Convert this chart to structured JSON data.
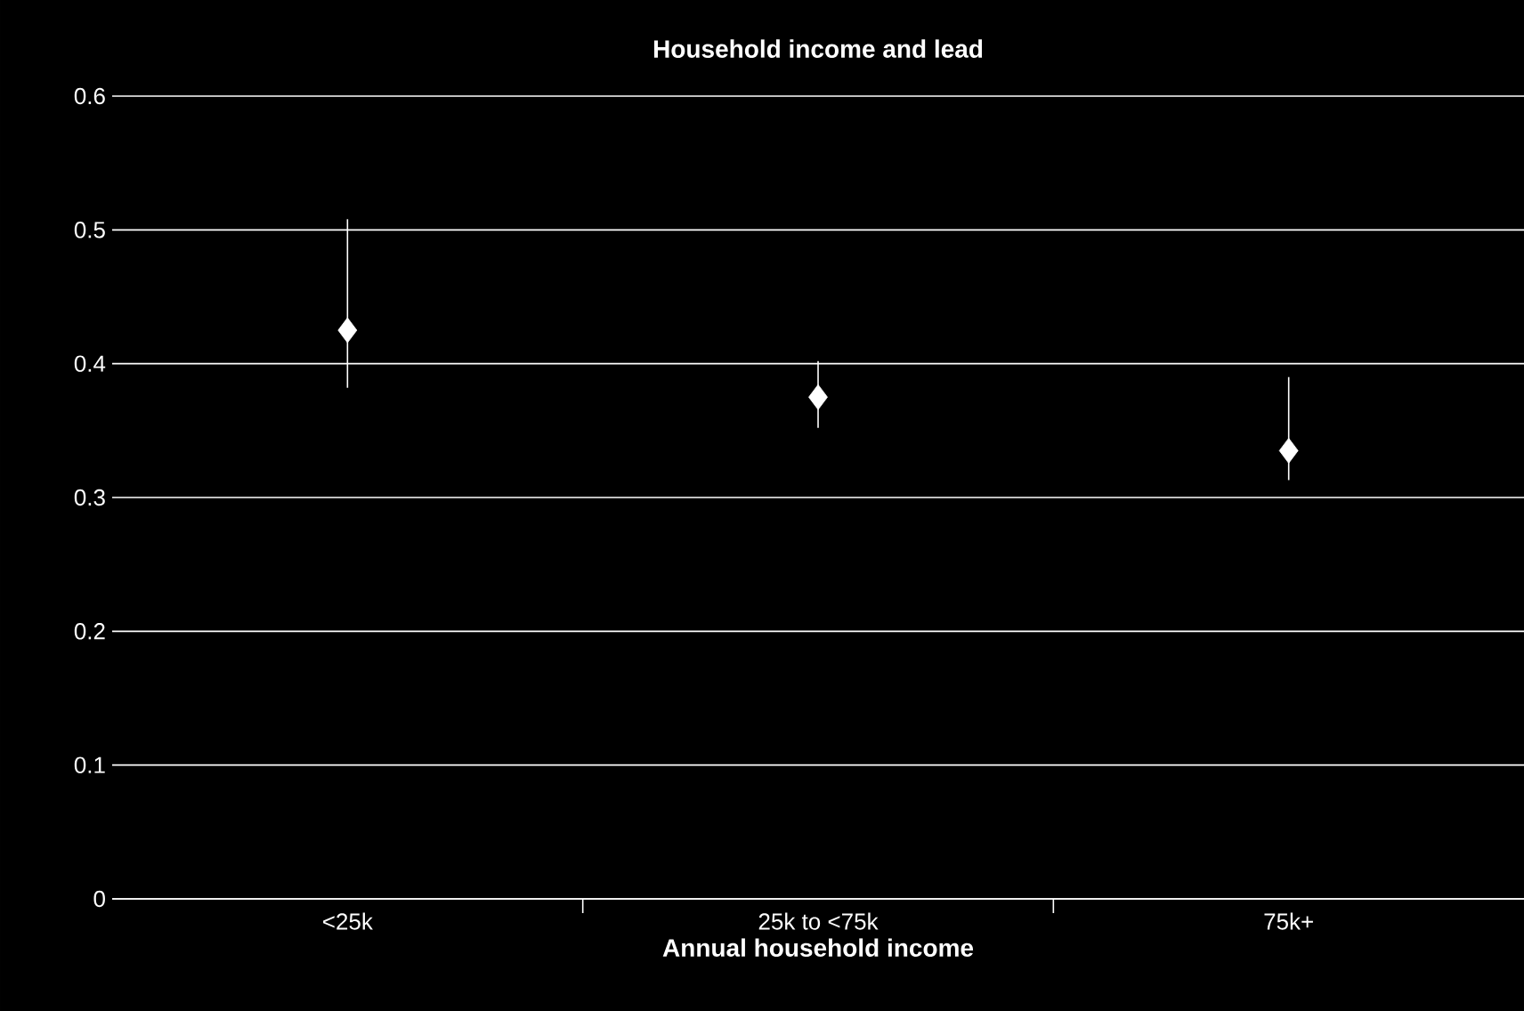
{
  "chart_data": {
    "type": "scatter",
    "title": "Household income and lead",
    "xlabel": "Annual household income",
    "categories": [
      "<25k",
      "25k to <75k",
      "75k+"
    ],
    "values": [
      0.425,
      0.375,
      0.335
    ],
    "errors": [
      [
        0.382,
        0.508
      ],
      [
        0.352,
        0.402
      ],
      [
        0.313,
        0.39
      ]
    ],
    "color": "#ffffff",
    "marker": "diamond",
    "ylim": [
      0,
      0.6
    ],
    "yticks": [
      0,
      0.1,
      0.2,
      0.3,
      0.4,
      0.5,
      0.6
    ],
    "grid": "y",
    "legend": false
  }
}
